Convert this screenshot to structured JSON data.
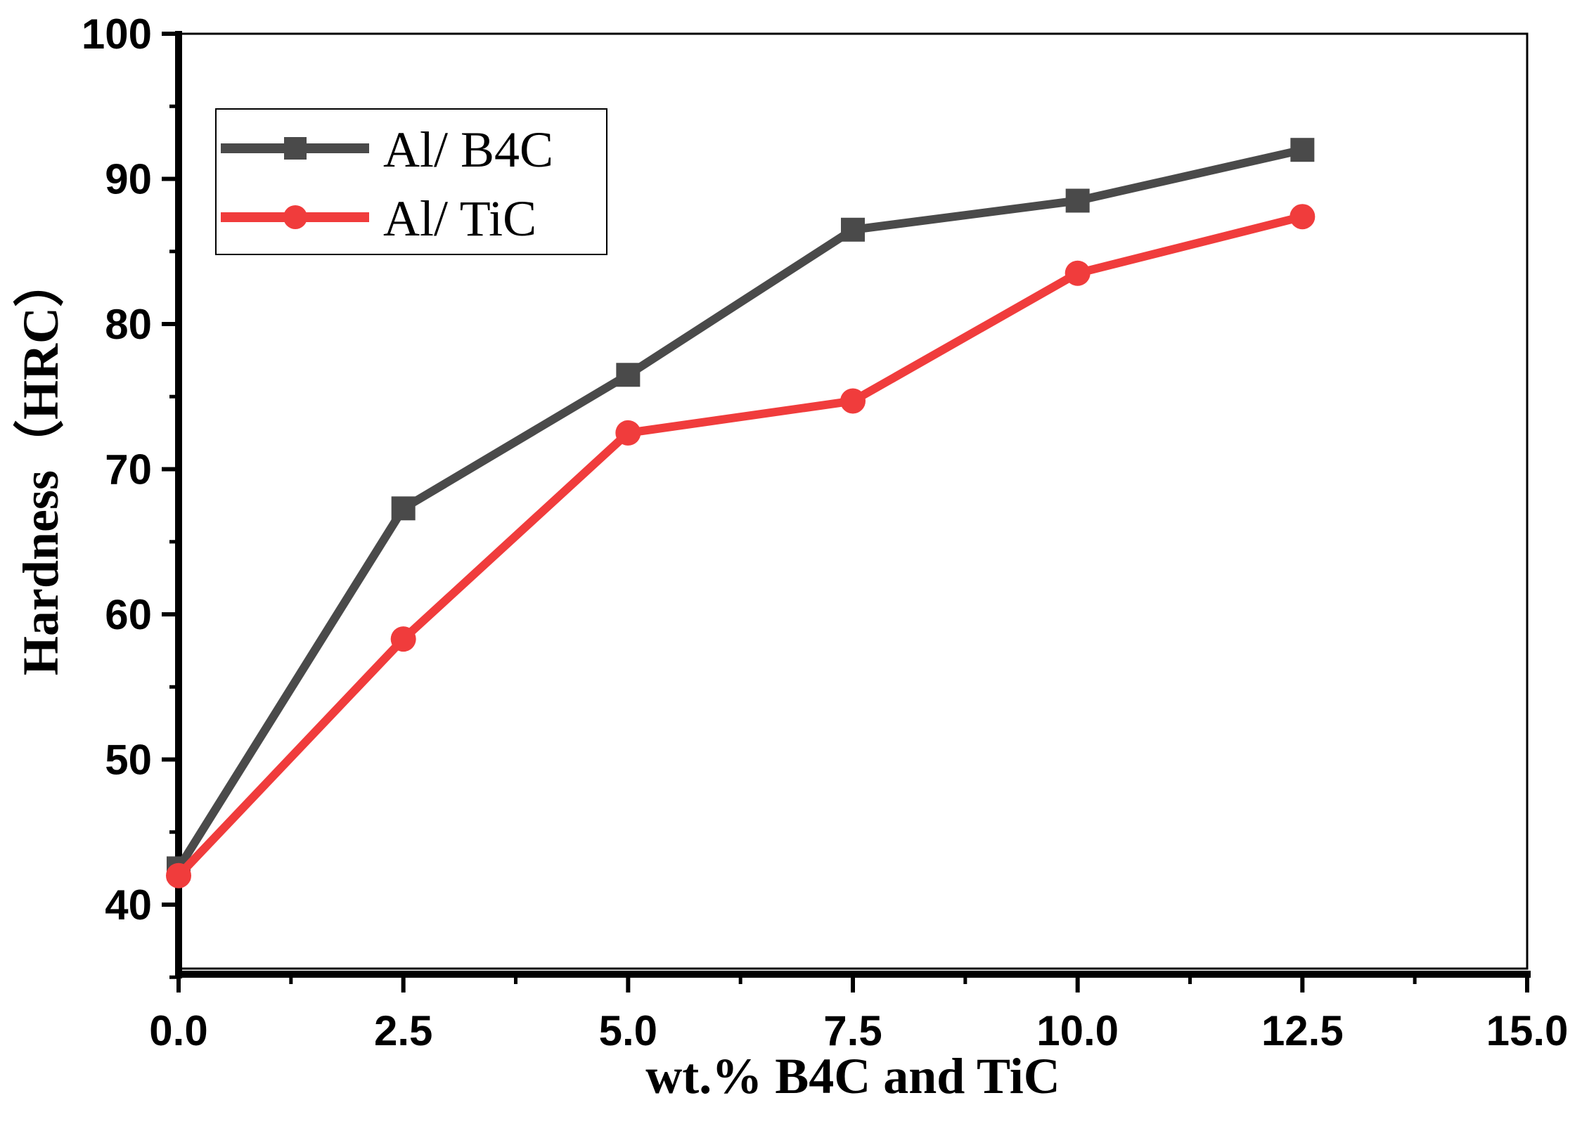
{
  "chart_data": {
    "type": "line",
    "title": "",
    "xlabel": "wt.% B4C and TiC",
    "ylabel": "Hardness（HRC）",
    "xlim": [
      0,
      15
    ],
    "ylim": [
      35,
      100
    ],
    "x_ticks": [
      0,
      2.5,
      5,
      7.5,
      10,
      12.5,
      15
    ],
    "x_tick_labels": [
      "0.0",
      "2.5",
      "5.0",
      "7.5",
      "10.0",
      "12.5",
      "15.0"
    ],
    "y_ticks": [
      40,
      50,
      60,
      70,
      80,
      90,
      100
    ],
    "y_tick_labels": [
      "40",
      "50",
      "60",
      "70",
      "80",
      "90",
      "100"
    ],
    "grid": false,
    "legend_position": "top-left",
    "series": [
      {
        "name": "Al/ B4C",
        "marker": "square",
        "color": "#4a4a4a",
        "x": [
          0,
          2.5,
          5,
          7.5,
          10,
          12.5
        ],
        "values": [
          42.5,
          67.3,
          76.5,
          86.5,
          88.5,
          92.0
        ]
      },
      {
        "name": "Al/ TiC",
        "marker": "circle",
        "color": "#f03c3c",
        "x": [
          0,
          2.5,
          5,
          7.5,
          10,
          12.5
        ],
        "values": [
          42.0,
          58.3,
          72.5,
          74.7,
          83.5,
          87.4
        ]
      }
    ]
  }
}
